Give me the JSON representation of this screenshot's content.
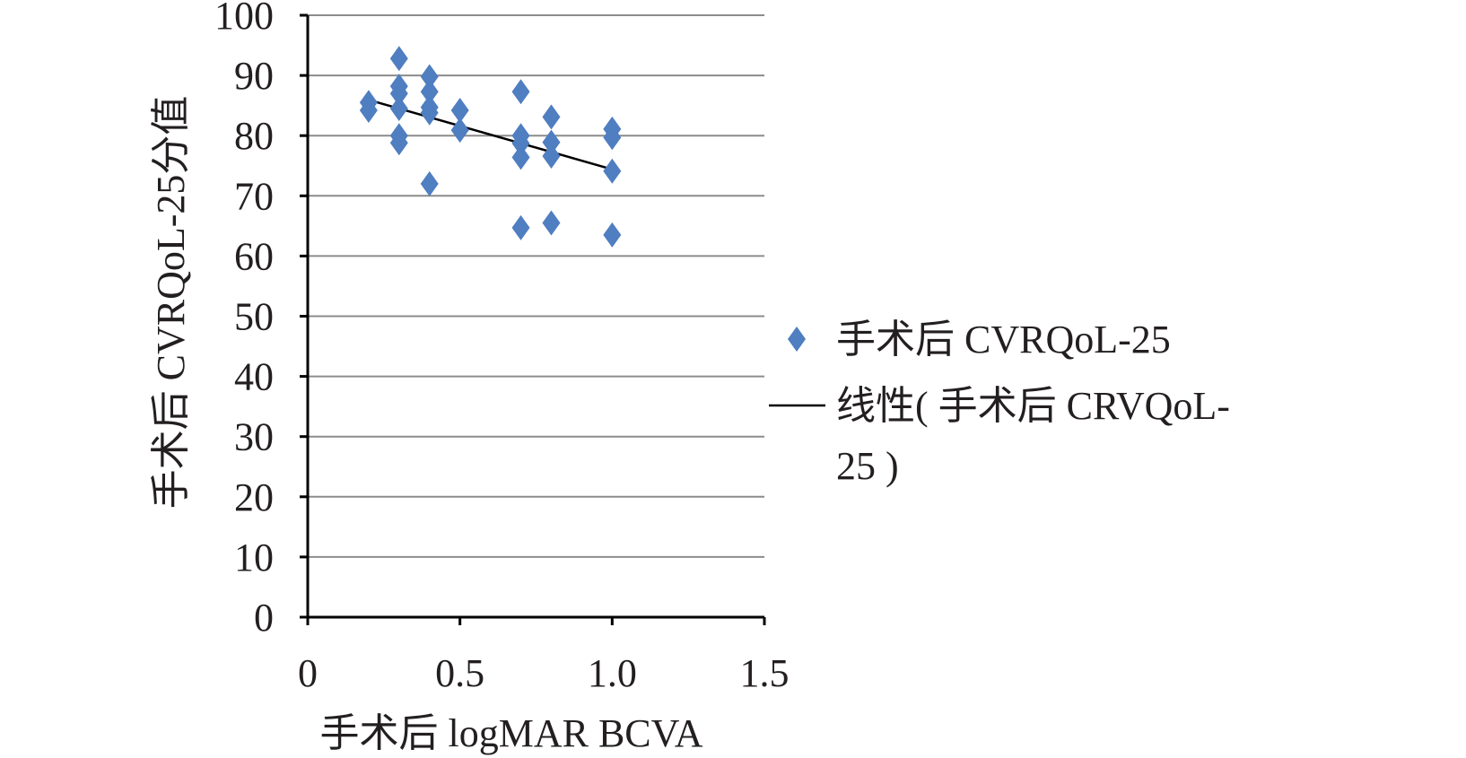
{
  "chart_data": {
    "type": "scatter",
    "xlabel": "手术后 logMAR BCVA",
    "ylabel": "手术后 CVRQoL-25分值",
    "xlim": [
      0,
      1.5
    ],
    "ylim": [
      0,
      100
    ],
    "x_ticks": [
      "0",
      "0.5",
      "1.0",
      "1.5"
    ],
    "y_ticks": [
      "0",
      "10",
      "20",
      "30",
      "40",
      "50",
      "60",
      "70",
      "80",
      "90",
      "100"
    ],
    "grid": "horizontal",
    "legend_position": "right",
    "series": [
      {
        "name": "手术后 CVRQoL-25",
        "marker": "diamond",
        "color": "#4f7ec1",
        "points": [
          {
            "x": 0.2,
            "y": 85.5
          },
          {
            "x": 0.2,
            "y": 84.2
          },
          {
            "x": 0.3,
            "y": 92.8
          },
          {
            "x": 0.3,
            "y": 88.2
          },
          {
            "x": 0.3,
            "y": 87.0
          },
          {
            "x": 0.3,
            "y": 84.5
          },
          {
            "x": 0.3,
            "y": 80.0
          },
          {
            "x": 0.3,
            "y": 78.8
          },
          {
            "x": 0.4,
            "y": 89.8
          },
          {
            "x": 0.4,
            "y": 87.3
          },
          {
            "x": 0.4,
            "y": 84.7
          },
          {
            "x": 0.4,
            "y": 83.8
          },
          {
            "x": 0.4,
            "y": 72.0
          },
          {
            "x": 0.5,
            "y": 84.2
          },
          {
            "x": 0.5,
            "y": 80.9
          },
          {
            "x": 0.7,
            "y": 87.3
          },
          {
            "x": 0.7,
            "y": 80.0
          },
          {
            "x": 0.7,
            "y": 78.7
          },
          {
            "x": 0.7,
            "y": 76.4
          },
          {
            "x": 0.7,
            "y": 64.7
          },
          {
            "x": 0.8,
            "y": 83.1
          },
          {
            "x": 0.8,
            "y": 78.9
          },
          {
            "x": 0.8,
            "y": 76.6
          },
          {
            "x": 0.8,
            "y": 65.5
          },
          {
            "x": 1.0,
            "y": 81.1
          },
          {
            "x": 1.0,
            "y": 79.7
          },
          {
            "x": 1.0,
            "y": 74.1
          },
          {
            "x": 1.0,
            "y": 63.5
          }
        ]
      },
      {
        "name": "线性( 手术后 CRVQoL-25 )",
        "type": "trendline",
        "color": "#000000",
        "points": [
          {
            "x": 0.21,
            "y": 85.8
          },
          {
            "x": 1.0,
            "y": 74.4
          }
        ]
      }
    ],
    "legend": {
      "line1": "手术后 CVRQoL-25",
      "line2a": "线性( 手术后 CRVQoL-",
      "line2b": "25 )"
    }
  }
}
